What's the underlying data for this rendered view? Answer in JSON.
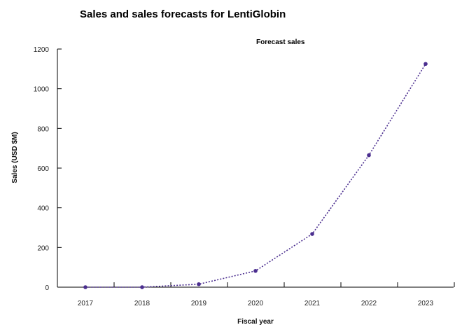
{
  "chart_data": {
    "type": "line",
    "title": "Sales and sales forecasts for LentiGlobin",
    "subtitle": "Forecast sales",
    "xlabel": "Fiscal year",
    "ylabel": "Sales (USD $M)",
    "x": [
      "2017",
      "2018",
      "2019",
      "2020",
      "2021",
      "2022",
      "2023"
    ],
    "y_ticks": [
      "0",
      "200",
      "400",
      "600",
      "800",
      "1000",
      "1200"
    ],
    "ylim": [
      0,
      1200
    ],
    "grid": false,
    "legend": "none",
    "series": [
      {
        "name": "Forecast sales",
        "values": [
          0,
          0,
          15,
          82,
          268,
          665,
          1125
        ]
      }
    ],
    "line_style": "dotted",
    "colors": {
      "series": "#4b2e8f",
      "axis": "#000000",
      "text": "#111111"
    }
  }
}
